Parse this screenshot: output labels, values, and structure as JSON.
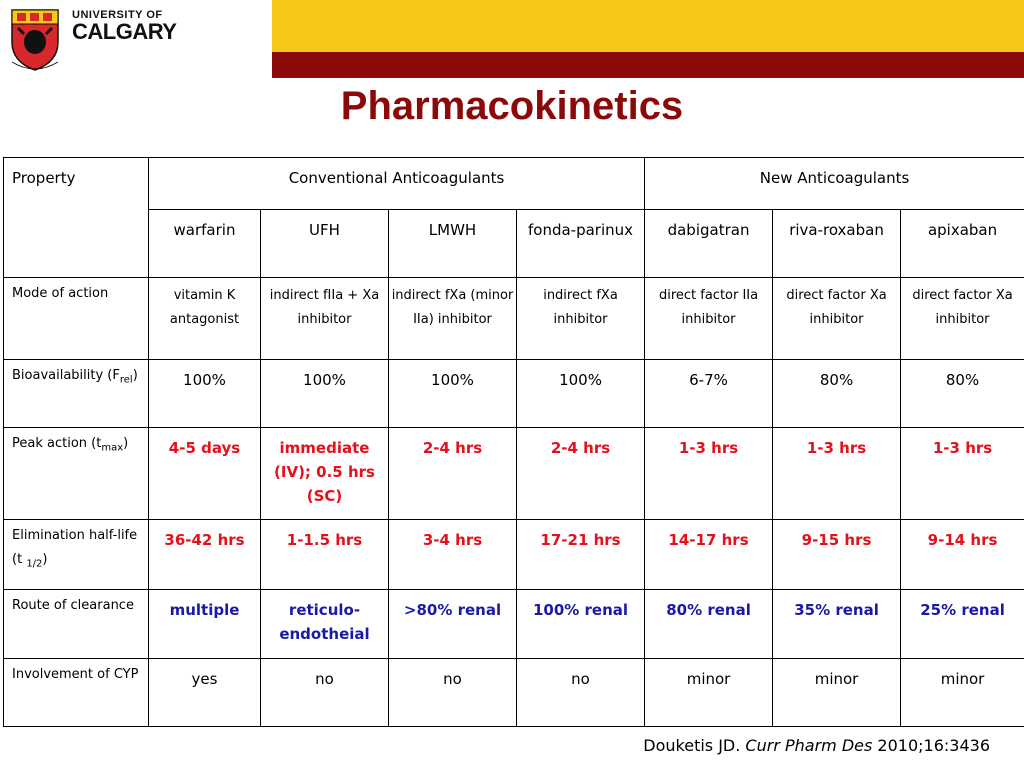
{
  "logo": {
    "top_line": "UNIVERSITY OF",
    "bottom_line": "CALGARY"
  },
  "title": "Pharmacokinetics",
  "table": {
    "property_header": "Property",
    "group_conventional": "Conventional Anticoagulants",
    "group_new": "New Anticoagulants",
    "drugs": [
      "warfarin",
      "UFH",
      "LMWH",
      "fonda-parinux",
      "dabigatran",
      "riva-roxaban",
      "apixaban"
    ],
    "rows": [
      {
        "label": "Mode of action",
        "cells": [
          "vitamin K antagonist",
          "indirect fIIa + Xa inhibitor",
          "indirect fXa (minor IIa) inhibitor",
          "indirect fXa inhibitor",
          "direct factor IIa inhibitor",
          "direct factor Xa inhibitor",
          "direct factor Xa inhibitor"
        ]
      },
      {
        "label": "Bioavailability (F",
        "label_sub": "rel",
        "label_tail": ")",
        "cells": [
          "100%",
          "100%",
          "100%",
          "100%",
          "6-7%",
          "80%",
          "80%"
        ]
      },
      {
        "label": "Peak action (t",
        "label_sub": "max",
        "label_tail": ")",
        "cells": [
          "4-5 days",
          "immediate (IV); 0.5 hrs (SC)",
          "2-4 hrs",
          "2-4 hrs",
          "1-3 hrs",
          "1-3 hrs",
          "1-3 hrs"
        ]
      },
      {
        "label": "Elimination half-life (t ",
        "label_sub": "1/2",
        "label_tail": ")",
        "cells": [
          "36-42 hrs",
          "1-1.5 hrs",
          "3-4 hrs",
          "17-21 hrs",
          "14-17 hrs",
          "9-15 hrs",
          "9-14 hrs"
        ]
      },
      {
        "label": "Route of clearance",
        "cells": [
          "multiple",
          "reticulo-endotheial",
          ">80% renal",
          "100% renal",
          "80% renal",
          "35% renal",
          "25% renal"
        ]
      },
      {
        "label": "Involvement of CYP",
        "cells": [
          "yes",
          "no",
          "no",
          "no",
          "minor",
          "minor",
          "minor"
        ]
      }
    ]
  },
  "citation": {
    "authors": "Douketis JD. ",
    "journal": "Curr Pharm Des",
    "details": " 2010;16:3436"
  },
  "colors": {
    "header_yellow": "#f7c819",
    "header_red": "#8b0a09",
    "title": "#8b0a09",
    "highlight_red": "#e4101b",
    "highlight_blue": "#1a1aa8"
  }
}
